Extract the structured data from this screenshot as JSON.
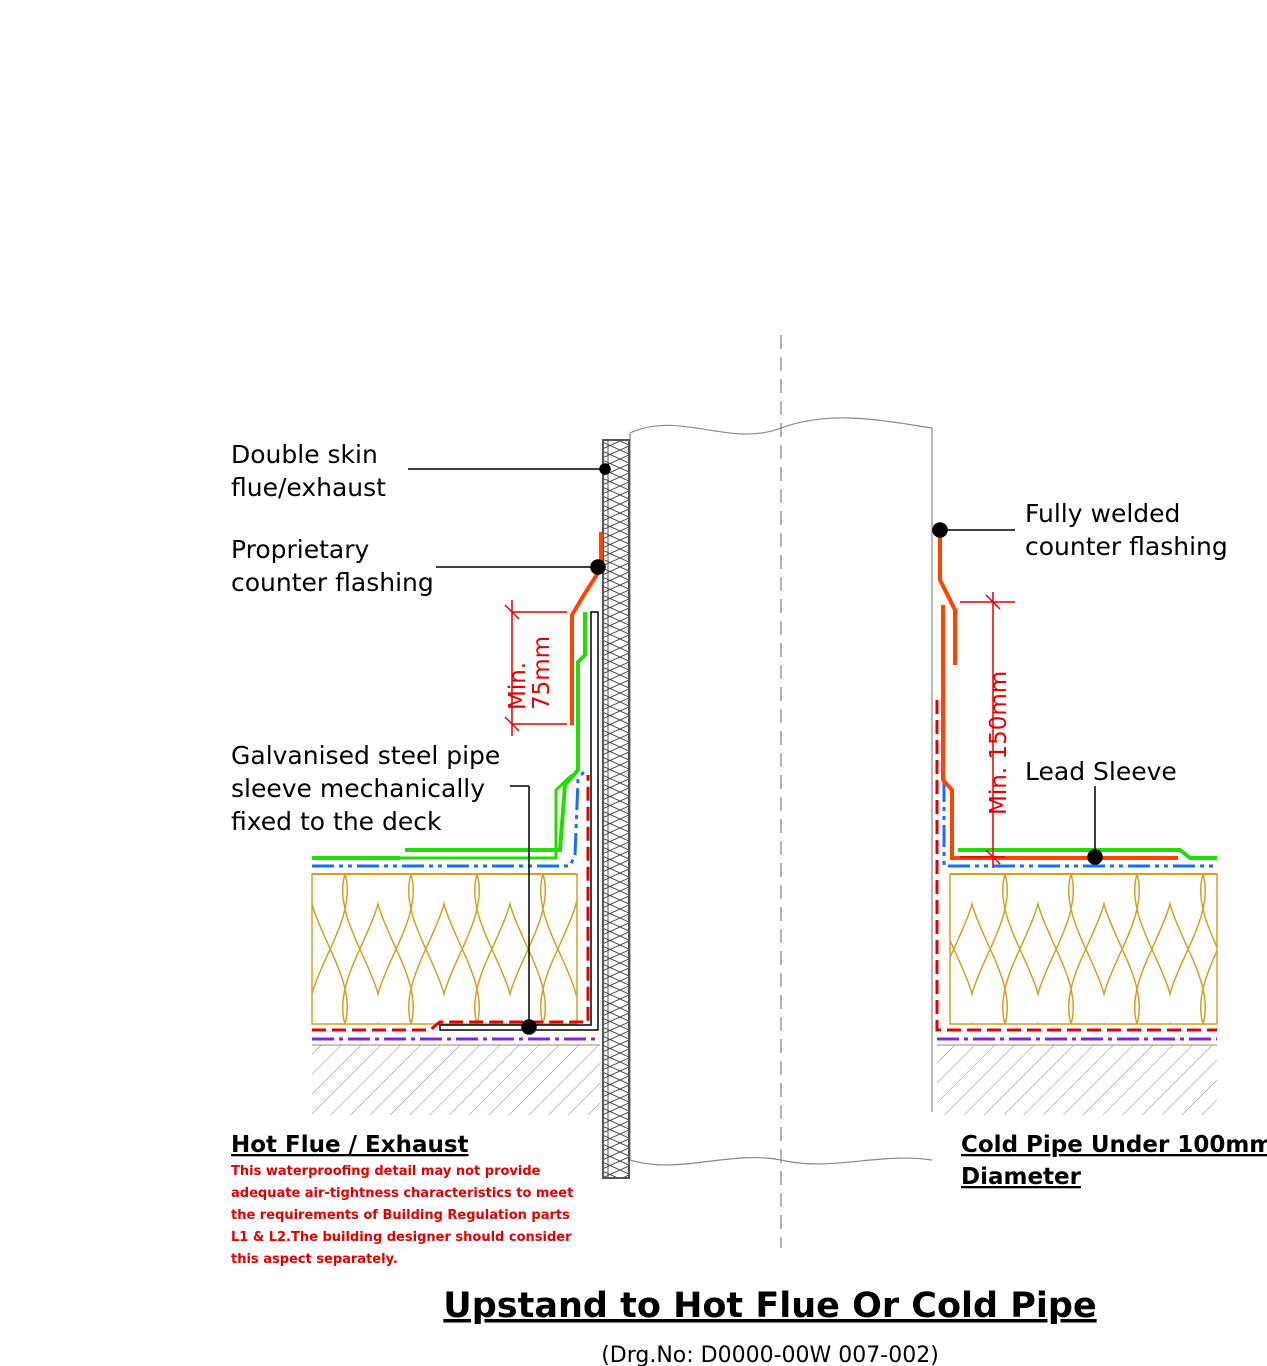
{
  "labels": {
    "double_skin": [
      "Double skin",
      "flue/exhaust"
    ],
    "proprietary": [
      "Proprietary",
      "counter flashing"
    ],
    "galvanised": [
      "Galvanised steel pipe",
      "sleeve mechanically",
      "fixed to the deck"
    ],
    "fully_welded": [
      "Fully welded",
      "counter flashing"
    ],
    "lead_sleeve": "Lead Sleeve"
  },
  "dimensions": {
    "hot": [
      "Min.",
      "75mm"
    ],
    "cold": "Min. 150mm"
  },
  "headings": {
    "hot": "Hot Flue / Exhaust",
    "cold": [
      "Cold Pipe Under 100mm",
      "Diameter"
    ]
  },
  "warning_note": [
    "This waterproofing detail may not provide",
    "adequate air-tightness characteristics to meet",
    "the requirements of Building Regulation parts",
    "L1 & L2.The building designer should consider",
    "this aspect separately."
  ],
  "title": "Upstand to Hot Flue Or Cold Pipe",
  "drawing_number": "(Drg.No: D0000-00W  007-002)",
  "colors": {
    "orange_flashing": "#ff4400",
    "green_membrane": "#22dd00",
    "blue_layer": "#1a6cff",
    "red_vcl": "#e00000",
    "purple_deck": "#8822dd",
    "insulation": "#d4a020",
    "hatch": "#888888"
  }
}
